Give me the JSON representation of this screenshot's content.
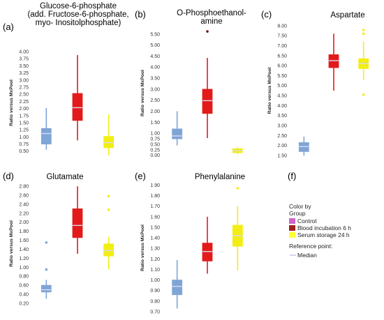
{
  "figure": {
    "legend": {
      "title_line1": "Color by",
      "title_line2": "Group",
      "entries": [
        {
          "label": "Control",
          "color": "#cc66cc"
        },
        {
          "label": "Blood incubation 6 h",
          "color": "#a0201a"
        },
        {
          "label": "Serum storage 24 h",
          "color": "#ffff33"
        }
      ],
      "reference_title": "Reference point:",
      "reference_label": "Median"
    },
    "panel_f_letter": "(f)"
  },
  "chart_data": [
    {
      "id": "a",
      "letter": "(a)",
      "type": "box",
      "title_lines": [
        "Glucose-6-phosphate",
        "(add. Fructose-6-phosphate,",
        "myo- Inositolphosphate)"
      ],
      "ylabel": "Ratio versus MxPool",
      "ylim": [
        0.3,
        4.1
      ],
      "ticks": [
        0.5,
        0.75,
        1.0,
        1.25,
        1.5,
        1.75,
        2.0,
        2.25,
        2.5,
        2.75,
        3.0,
        3.25,
        3.5,
        3.75,
        4.0
      ],
      "tick_decimals": 2,
      "grid": false,
      "boxes": [
        {
          "group": "Control",
          "color": "#7fa5d6",
          "q1": 0.75,
          "median": 1.12,
          "q3": 1.3,
          "min": 0.55,
          "max": 2.02,
          "outliers": []
        },
        {
          "group": "Blood incubation 6 h",
          "color": "#e21a1a",
          "q1": 1.58,
          "median": 2.03,
          "q3": 2.53,
          "min": 0.88,
          "max": 3.88,
          "outliers": []
        },
        {
          "group": "Serum storage 24 h",
          "color": "#f2ee14",
          "q1": 0.62,
          "median": 0.8,
          "q3": 1.02,
          "min": 0.35,
          "max": 1.8,
          "outliers": []
        }
      ]
    },
    {
      "id": "b",
      "letter": "(b)",
      "type": "box",
      "title_lines": [
        "O-Phosphoethanol-",
        "amine"
      ],
      "ylabel": "Ratio versus MxPool",
      "ylim": [
        -0.1,
        5.75
      ],
      "ticks": [
        0.0,
        0.25,
        0.5,
        0.75,
        1.0,
        1.5,
        2.0,
        2.5,
        3.0,
        3.5,
        4.0,
        4.5,
        5.0,
        5.5
      ],
      "tick_decimals": 2,
      "grid": false,
      "boxes": [
        {
          "group": "Control",
          "color": "#7fa5d6",
          "q1": 0.75,
          "median": 0.88,
          "q3": 1.2,
          "min": 0.45,
          "max": 2.0,
          "outliers": []
        },
        {
          "group": "Blood incubation 6 h",
          "color": "#e21a1a",
          "q1": 1.9,
          "median": 2.48,
          "q3": 3.0,
          "min": 0.78,
          "max": 4.42,
          "outliers": [
            5.62
          ]
        },
        {
          "group": "Serum storage 24 h",
          "color": "#f2ee14",
          "q1": 0.12,
          "median": 0.22,
          "q3": 0.3,
          "min": 0.06,
          "max": 0.38,
          "outliers": []
        }
      ]
    },
    {
      "id": "c",
      "letter": "(c)",
      "type": "box",
      "title_lines": [
        "Aspartate"
      ],
      "ylabel": "Ratio versus MxPool",
      "ylim": [
        1.4,
        8.1
      ],
      "ticks": [
        1.5,
        2.0,
        2.5,
        3.0,
        3.5,
        4.0,
        4.5,
        5.0,
        5.5,
        6.0,
        6.5,
        7.0,
        7.5,
        8.0
      ],
      "tick_decimals": 2,
      "grid": false,
      "boxes": [
        {
          "group": "Control",
          "color": "#7fa5d6",
          "q1": 1.7,
          "median": 1.95,
          "q3": 2.15,
          "min": 1.5,
          "max": 2.45,
          "outliers": []
        },
        {
          "group": "Blood incubation 6 h",
          "color": "#e21a1a",
          "q1": 5.9,
          "median": 6.25,
          "q3": 6.55,
          "min": 4.75,
          "max": 7.6,
          "outliers": []
        },
        {
          "group": "Serum storage 24 h",
          "color": "#f2ee14",
          "q1": 5.85,
          "median": 6.1,
          "q3": 6.35,
          "min": 5.3,
          "max": 7.2,
          "outliers": [
            4.55,
            7.6,
            7.78
          ]
        }
      ]
    },
    {
      "id": "d",
      "letter": "(d)",
      "type": "box",
      "title_lines": [
        "Glutamate"
      ],
      "ylabel": "Ratio versus MxPool",
      "ylim": [
        0.2,
        2.85
      ],
      "ticks": [
        0.2,
        0.4,
        0.6,
        0.8,
        1.0,
        1.2,
        1.4,
        1.6,
        1.8,
        2.0,
        2.2,
        2.4,
        2.6,
        2.8
      ],
      "tick_decimals": 2,
      "grid": false,
      "boxes": [
        {
          "group": "Control",
          "color": "#7fa5d6",
          "q1": 0.45,
          "median": 0.5,
          "q3": 0.6,
          "min": 0.3,
          "max": 0.72,
          "outliers": [
            0.95,
            1.55
          ]
        },
        {
          "group": "Blood incubation 6 h",
          "color": "#e21a1a",
          "q1": 1.66,
          "median": 1.93,
          "q3": 2.3,
          "min": 1.3,
          "max": 2.8,
          "outliers": []
        },
        {
          "group": "Serum storage 24 h",
          "color": "#f2ee14",
          "q1": 1.25,
          "median": 1.37,
          "q3": 1.52,
          "min": 0.95,
          "max": 1.68,
          "outliers": [
            2.28,
            2.58
          ]
        }
      ]
    },
    {
      "id": "e",
      "letter": "(e)",
      "type": "box",
      "title_lines": [
        "Phenylalanine"
      ],
      "ylabel": "Ratio versus MxPool",
      "ylim": [
        0.68,
        1.93
      ],
      "ticks": [
        0.7,
        0.8,
        0.9,
        1.0,
        1.1,
        1.2,
        1.3,
        1.4,
        1.5,
        1.6,
        1.7,
        1.8,
        1.9
      ],
      "tick_decimals": 2,
      "grid": false,
      "boxes": [
        {
          "group": "Control",
          "color": "#7fa5d6",
          "q1": 0.86,
          "median": 0.94,
          "q3": 1.0,
          "min": 0.73,
          "max": 1.19,
          "outliers": []
        },
        {
          "group": "Blood incubation 6 h",
          "color": "#e21a1a",
          "q1": 1.18,
          "median": 1.27,
          "q3": 1.35,
          "min": 1.06,
          "max": 1.6,
          "outliers": []
        },
        {
          "group": "Serum storage 24 h",
          "color": "#f2ee14",
          "q1": 1.32,
          "median": 1.42,
          "q3": 1.52,
          "min": 1.09,
          "max": 1.7,
          "outliers": [
            1.87
          ]
        }
      ]
    }
  ]
}
